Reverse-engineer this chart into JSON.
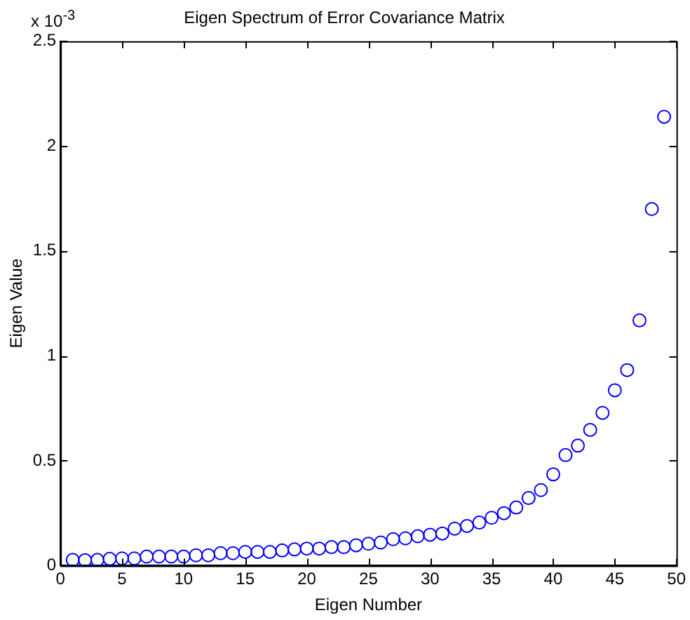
{
  "chart_data": {
    "type": "scatter",
    "title": "Eigen Spectrum of Error Covariance Matrix",
    "xlabel": "Eigen Number",
    "ylabel": "Eigen Value",
    "annotations": [
      "x 10$^{-3}$"
    ],
    "x": [
      1,
      2,
      3,
      4,
      5,
      6,
      7,
      8,
      9,
      10,
      11,
      12,
      13,
      14,
      15,
      16,
      17,
      18,
      19,
      20,
      21,
      22,
      23,
      24,
      25,
      26,
      27,
      28,
      29,
      30,
      31,
      32,
      33,
      34,
      35,
      36,
      37,
      38,
      39,
      40,
      41,
      42,
      43,
      44,
      45,
      46,
      47,
      48,
      49
    ],
    "series": [
      {
        "color": "#0000ff",
        "values": [
          0.027,
          0.026,
          0.027,
          0.032,
          0.034,
          0.034,
          0.043,
          0.043,
          0.043,
          0.043,
          0.049,
          0.049,
          0.059,
          0.059,
          0.065,
          0.065,
          0.065,
          0.072,
          0.077,
          0.081,
          0.081,
          0.088,
          0.088,
          0.097,
          0.104,
          0.11,
          0.126,
          0.13,
          0.14,
          0.147,
          0.153,
          0.176,
          0.189,
          0.205,
          0.228,
          0.25,
          0.277,
          0.322,
          0.36,
          0.435,
          0.527,
          0.572,
          0.647,
          0.728,
          0.836,
          0.932,
          1.169,
          1.7,
          2.14
        ]
      }
    ],
    "marker": "circle",
    "xlim": [
      0,
      50
    ],
    "xticks": [
      0,
      5,
      10,
      15,
      20,
      25,
      30,
      35,
      40,
      45,
      50
    ],
    "ylim": [
      0,
      2.5
    ],
    "yticks": [
      0,
      0.5,
      1,
      1.5,
      2,
      2.5
    ],
    "grid": false,
    "legend": false
  }
}
